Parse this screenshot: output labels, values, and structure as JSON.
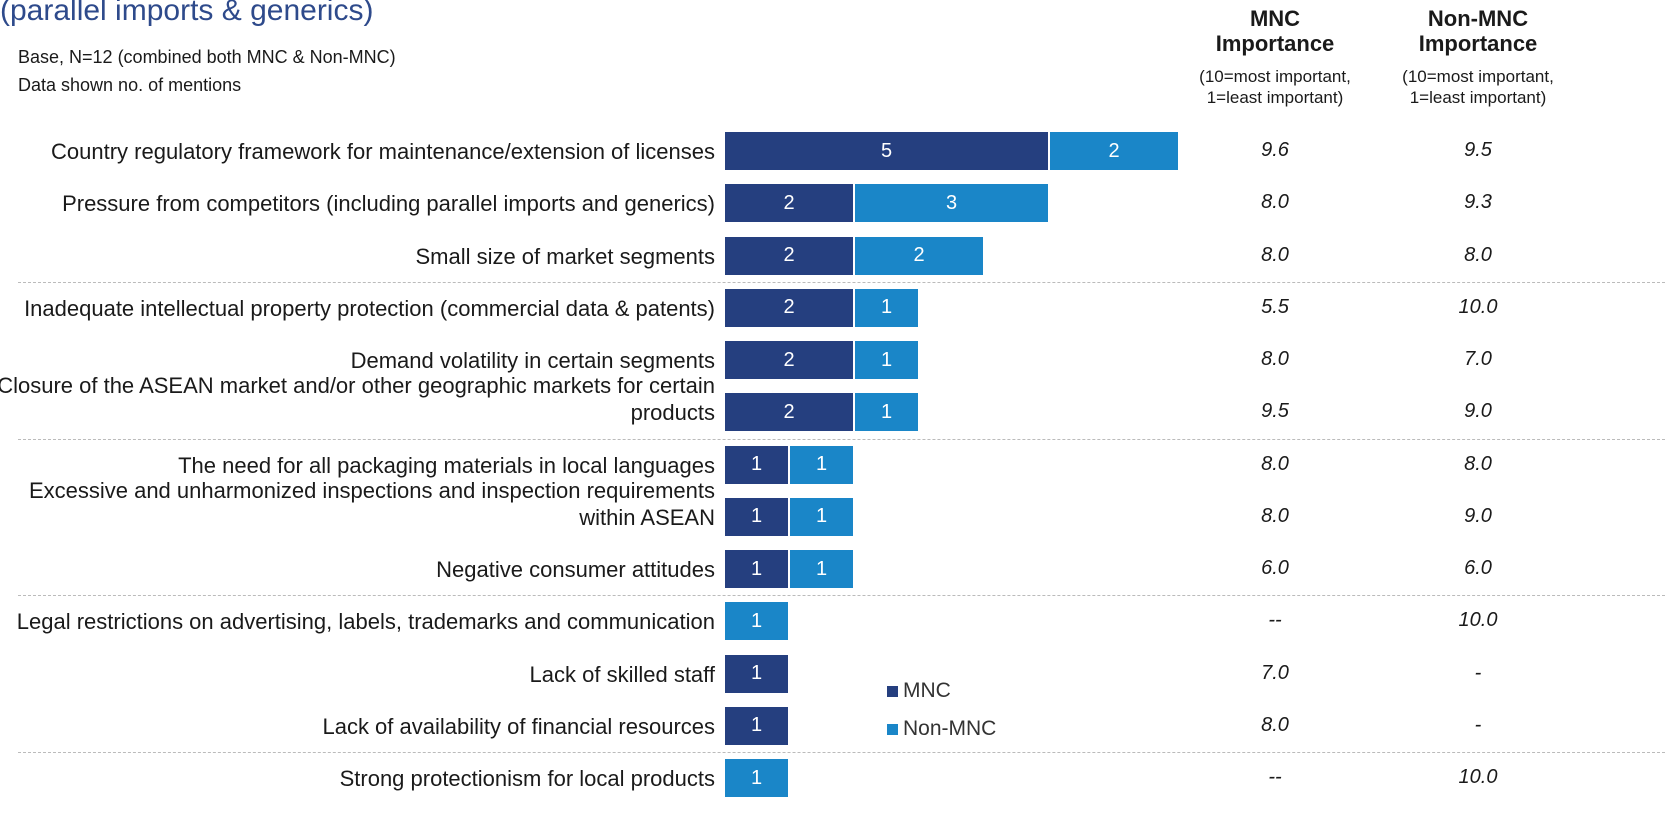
{
  "chart_data": {
    "type": "bar",
    "orientation": "horizontal",
    "stacked": true,
    "title": "(parallel imports & generics)",
    "subtitle": [
      "Base, N=12 (combined both MNC & Non-MNC)",
      "Data shown no. of mentions"
    ],
    "categories": [
      "Country regulatory framework for maintenance/extension of licenses",
      "Pressure from competitors (including parallel imports and generics)",
      "Small size of market segments",
      "Inadequate intellectual property protection (commercial data & patents)",
      "Demand volatility in certain segments",
      "Closure of the ASEAN market and/or other geographic markets for certain products",
      "The need for all packaging materials in local languages",
      "Excessive and unharmonized inspections and inspection requirements within ASEAN",
      "Negative consumer attitudes",
      "Legal restrictions on advertising, labels, trademarks and communication",
      "Lack of skilled staff",
      "Lack of availability of financial resources",
      "Strong protectionism for local products"
    ],
    "series": [
      {
        "name": "MNC",
        "color": "#253f7f",
        "values": [
          5,
          2,
          2,
          2,
          2,
          2,
          1,
          1,
          1,
          null,
          1,
          1,
          null
        ]
      },
      {
        "name": "Non-MNC",
        "color": "#1a86c8",
        "values": [
          2,
          3,
          2,
          1,
          1,
          1,
          1,
          1,
          1,
          1,
          null,
          null,
          1
        ]
      }
    ],
    "xlim": [
      0,
      7
    ],
    "importance": [
      {
        "name": "MNC Importance",
        "note": "(10=most important, 1=least important)",
        "values": [
          9.6,
          8.0,
          8.0,
          5.5,
          8.0,
          9.5,
          8.0,
          8.0,
          6.0,
          null,
          7.0,
          8.0,
          null
        ],
        "value_labels": [
          "9.6",
          "8.0",
          "8.0",
          "5.5",
          "8.0",
          "9.5",
          "8.0",
          "8.0",
          "6.0",
          "--",
          "7.0",
          "8.0",
          "--"
        ]
      },
      {
        "name": "Non-MNC Importance",
        "note": "(10=most important, 1=least important)",
        "values": [
          9.5,
          9.3,
          8.0,
          10.0,
          7.0,
          9.0,
          8.0,
          9.0,
          6.0,
          10.0,
          null,
          null,
          10.0
        ],
        "value_labels": [
          "9.5",
          "9.3",
          "8.0",
          "10.0",
          "7.0",
          "9.0",
          "8.0",
          "9.0",
          "6.0",
          "10.0",
          "-",
          "-",
          "10.0"
        ]
      }
    ]
  }
}
